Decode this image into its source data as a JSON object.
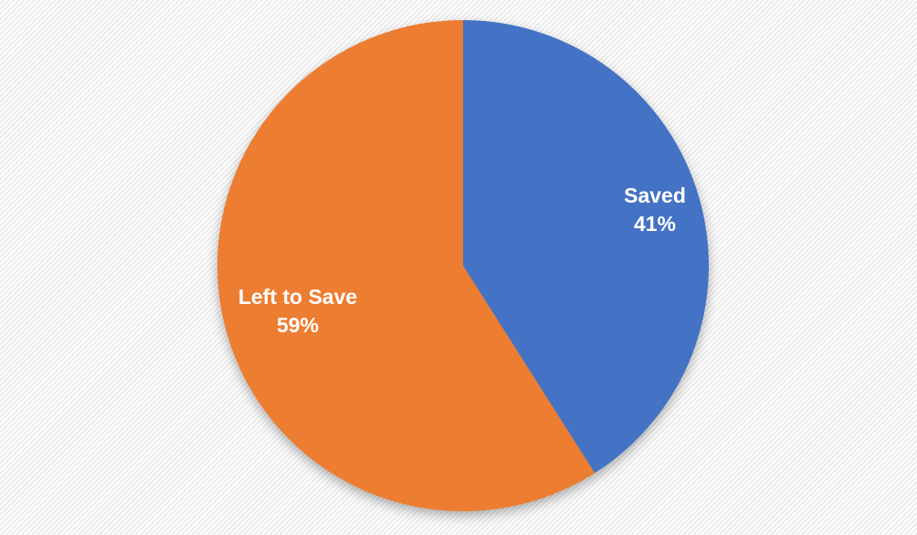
{
  "chart_data": {
    "type": "pie",
    "title": "",
    "categories": [
      "Saved",
      "Left to Save"
    ],
    "values": [
      41,
      59
    ],
    "colors": [
      "#4472C4",
      "#ED7D31"
    ],
    "start_angle_deg": 0,
    "direction": "clockwise",
    "legend": "none",
    "data_label_style": "category name + percentage inside slice",
    "label_text_color": "#FFFFFF",
    "labels": [
      {
        "name": "Saved",
        "value_text": "41%"
      },
      {
        "name": "Left to Save",
        "value_text": "59%"
      }
    ]
  },
  "background": {
    "base_color": "#FFFFFF",
    "stripe_color": "#EBEBEB",
    "pattern": "diagonal-stripes"
  }
}
